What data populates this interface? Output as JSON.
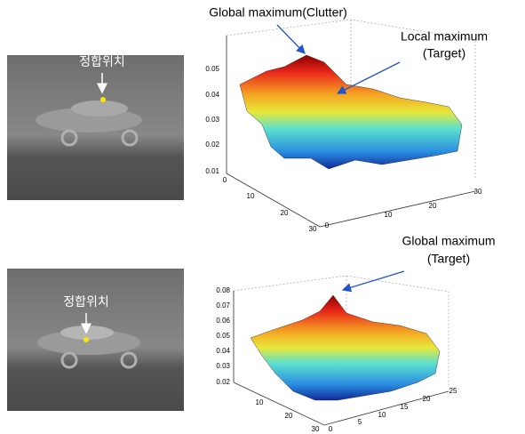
{
  "panels": [
    {
      "image_label": "정합위치",
      "plot": {
        "annotations": [
          "Global maximum(Clutter)",
          "Local maximum",
          "(Target)"
        ],
        "z_ticks": [
          0.05,
          0.04,
          0.03,
          0.02,
          0.01
        ],
        "x_ticks": [
          0,
          10,
          20,
          30
        ],
        "y_ticks": [
          0,
          10,
          20,
          30
        ]
      }
    },
    {
      "image_label": "정합위치",
      "plot": {
        "annotations": [
          "Global maximum",
          "(Target)"
        ],
        "z_ticks": [
          0.08,
          0.07,
          0.06,
          0.05,
          0.04,
          0.03,
          0.02
        ],
        "x_ticks": [
          10,
          20,
          30
        ],
        "y_ticks": [
          0,
          5,
          10,
          15,
          20,
          25
        ]
      }
    }
  ]
}
